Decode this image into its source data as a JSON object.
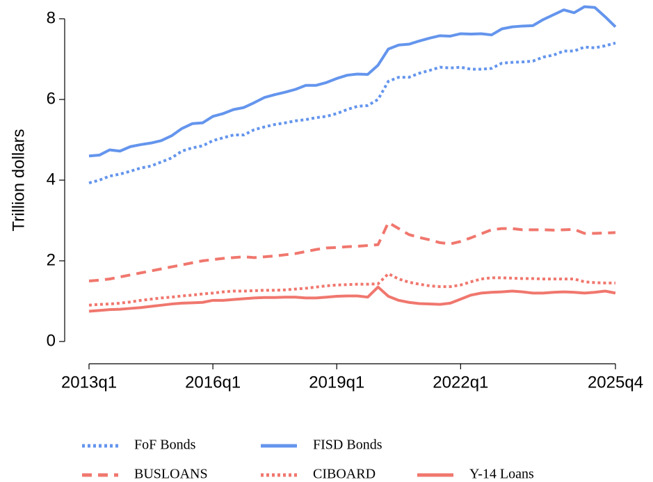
{
  "chart_data": {
    "type": "line",
    "y_label": "Trillion dollars",
    "categories": [
      "2013q1",
      null,
      null,
      null,
      null,
      null,
      null,
      null,
      null,
      null,
      null,
      null,
      "2016q1",
      null,
      null,
      null,
      null,
      null,
      null,
      null,
      null,
      null,
      null,
      null,
      "2019q1",
      null,
      null,
      null,
      null,
      null,
      null,
      null,
      null,
      null,
      null,
      null,
      "2022q1",
      null,
      null,
      null,
      null,
      null,
      null,
      null,
      null,
      null,
      null,
      null,
      null,
      null,
      null,
      "2025q4"
    ],
    "ylim": [
      0,
      8
    ],
    "yticks": [
      0,
      2,
      4,
      6,
      8
    ],
    "grid": false,
    "series": [
      {
        "name": "FoF Bonds",
        "color": "#6495ed",
        "dash": "dot",
        "values": [
          3.93,
          4.0,
          4.1,
          4.15,
          4.22,
          4.3,
          4.35,
          4.45,
          4.55,
          4.72,
          4.8,
          4.85,
          4.98,
          5.05,
          5.12,
          5.12,
          5.25,
          5.32,
          5.38,
          5.42,
          5.47,
          5.5,
          5.55,
          5.58,
          5.65,
          5.75,
          5.83,
          5.85,
          6.0,
          6.45,
          6.55,
          6.55,
          6.65,
          6.72,
          6.8,
          6.78,
          6.8,
          6.75,
          6.75,
          6.77,
          6.9,
          6.92,
          6.93,
          6.95,
          7.05,
          7.1,
          7.2,
          7.2,
          7.3,
          7.28,
          7.33,
          7.4
        ]
      },
      {
        "name": "FISD Bonds",
        "color": "#6495ed",
        "dash": "solid",
        "values": [
          4.6,
          4.62,
          4.75,
          4.72,
          4.83,
          4.88,
          4.92,
          4.98,
          5.1,
          5.28,
          5.4,
          5.42,
          5.58,
          5.65,
          5.75,
          5.8,
          5.92,
          6.05,
          6.12,
          6.18,
          6.25,
          6.35,
          6.35,
          6.42,
          6.52,
          6.6,
          6.63,
          6.62,
          6.85,
          7.25,
          7.35,
          7.37,
          7.45,
          7.52,
          7.58,
          7.57,
          7.63,
          7.62,
          7.63,
          7.6,
          7.75,
          7.8,
          7.82,
          7.83,
          7.98,
          8.1,
          8.22,
          8.15,
          8.3,
          8.28,
          8.05,
          7.8
        ]
      },
      {
        "name": "BUSLOANS",
        "color": "#f0776e",
        "dash": "dash",
        "values": [
          1.5,
          1.52,
          1.55,
          1.6,
          1.65,
          1.7,
          1.75,
          1.8,
          1.85,
          1.9,
          1.95,
          2.0,
          2.03,
          2.06,
          2.08,
          2.1,
          2.08,
          2.1,
          2.12,
          2.15,
          2.18,
          2.23,
          2.28,
          2.32,
          2.33,
          2.35,
          2.36,
          2.38,
          2.4,
          2.95,
          2.8,
          2.65,
          2.58,
          2.52,
          2.45,
          2.42,
          2.48,
          2.57,
          2.67,
          2.77,
          2.8,
          2.8,
          2.77,
          2.77,
          2.77,
          2.76,
          2.77,
          2.78,
          2.68,
          2.68,
          2.69,
          2.7
        ]
      },
      {
        "name": "CIBOARD",
        "color": "#f0776e",
        "dash": "dot",
        "values": [
          0.9,
          0.92,
          0.93,
          0.95,
          0.98,
          1.02,
          1.05,
          1.08,
          1.1,
          1.13,
          1.15,
          1.18,
          1.2,
          1.23,
          1.25,
          1.25,
          1.26,
          1.27,
          1.27,
          1.28,
          1.3,
          1.32,
          1.35,
          1.38,
          1.4,
          1.41,
          1.42,
          1.42,
          1.43,
          1.68,
          1.55,
          1.47,
          1.42,
          1.38,
          1.36,
          1.36,
          1.4,
          1.48,
          1.55,
          1.58,
          1.58,
          1.57,
          1.56,
          1.56,
          1.55,
          1.55,
          1.55,
          1.55,
          1.48,
          1.46,
          1.45,
          1.45
        ]
      },
      {
        "name": "Y-14 Loans",
        "color": "#f0776e",
        "dash": "solid",
        "values": [
          0.75,
          0.77,
          0.79,
          0.8,
          0.82,
          0.84,
          0.87,
          0.9,
          0.93,
          0.95,
          0.96,
          0.97,
          1.02,
          1.02,
          1.04,
          1.06,
          1.08,
          1.09,
          1.09,
          1.1,
          1.1,
          1.08,
          1.08,
          1.1,
          1.12,
          1.13,
          1.13,
          1.1,
          1.35,
          1.12,
          1.02,
          0.97,
          0.94,
          0.93,
          0.92,
          0.95,
          1.05,
          1.15,
          1.2,
          1.22,
          1.23,
          1.25,
          1.23,
          1.2,
          1.2,
          1.22,
          1.23,
          1.22,
          1.2,
          1.22,
          1.25,
          1.2
        ]
      }
    ]
  }
}
